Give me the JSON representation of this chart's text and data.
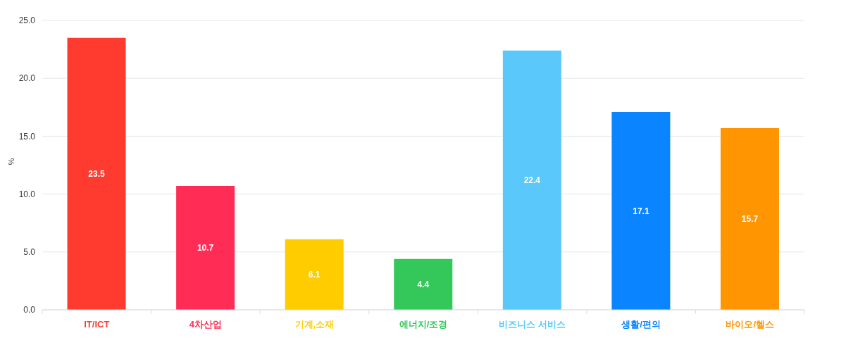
{
  "chart_data": {
    "type": "bar",
    "categories": [
      "IT/ICT",
      "4차산업",
      "기계,소재",
      "에너지/조경",
      "비즈니스 서비스",
      "생활/편의",
      "바이오/헬스"
    ],
    "values": [
      23.5,
      10.7,
      6.1,
      4.4,
      22.4,
      17.1,
      15.7
    ],
    "colors": [
      "#ff3b30",
      "#ff2d55",
      "#ffcc00",
      "#34c759",
      "#5ac8fa",
      "#0a84ff",
      "#ff9500"
    ],
    "ylabel": "%",
    "ylim": [
      0,
      25
    ],
    "yticks": [
      {
        "value": 0,
        "label": "0.0"
      },
      {
        "value": 5,
        "label": "5.0"
      },
      {
        "value": 10,
        "label": "10.0"
      },
      {
        "value": 15,
        "label": "15.0"
      },
      {
        "value": 20,
        "label": "20.0"
      },
      {
        "value": 25,
        "label": "25.0"
      }
    ],
    "grid": "y",
    "data_labels": true
  }
}
